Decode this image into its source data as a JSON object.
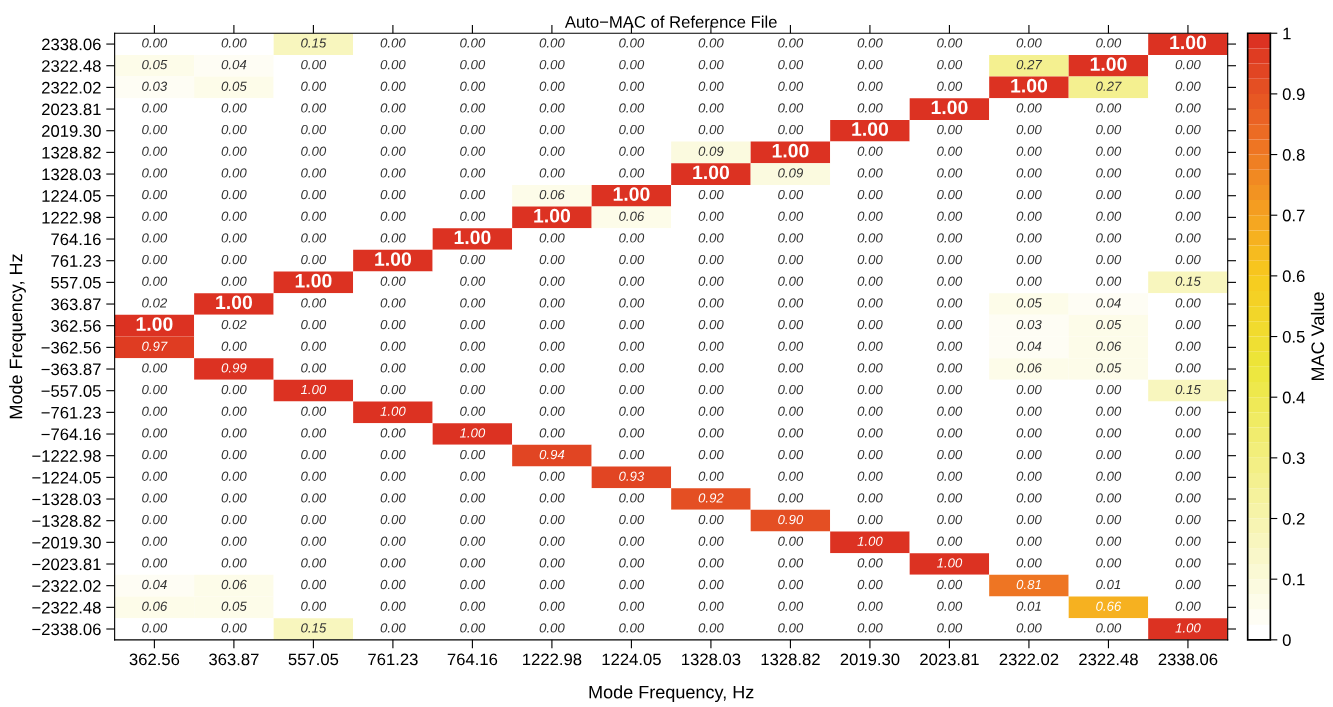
{
  "chart_data": {
    "type": "heatmap",
    "title": "Auto−MAC of Reference File",
    "xlabel": "Mode Frequency, Hz",
    "ylabel": "Mode Frequency, Hz",
    "clabel": "MAC Value",
    "categories": [
      "362.56",
      "363.87",
      "557.05",
      "761.23",
      "764.16",
      "1222.98",
      "1224.05",
      "1328.03",
      "1328.82",
      "2019.30",
      "2023.81",
      "2322.02",
      "2322.48",
      "2338.06"
    ],
    "y_categories": [
      "2338.06",
      "2322.48",
      "2322.02",
      "2023.81",
      "2019.30",
      "1328.82",
      "1328.03",
      "1224.05",
      "1222.98",
      "764.16",
      "761.23",
      "557.05",
      "363.87",
      "362.56",
      "−362.56",
      "−363.87",
      "−557.05",
      "−761.23",
      "−764.16",
      "−1222.98",
      "−1224.05",
      "−1328.03",
      "−1328.82",
      "−2019.30",
      "−2023.81",
      "−2322.02",
      "−2322.48",
      "−2338.06"
    ],
    "cells": [
      [
        0.0,
        0.0,
        0.15,
        0.0,
        0.0,
        0.0,
        0.0,
        0.0,
        0.0,
        0.0,
        0.0,
        0.0,
        0.0,
        1.0
      ],
      [
        0.05,
        0.04,
        0.0,
        0.0,
        0.0,
        0.0,
        0.0,
        0.0,
        0.0,
        0.0,
        0.0,
        0.27,
        1.0,
        0.0
      ],
      [
        0.03,
        0.05,
        0.0,
        0.0,
        0.0,
        0.0,
        0.0,
        0.0,
        0.0,
        0.0,
        0.0,
        1.0,
        0.27,
        0.0
      ],
      [
        0.0,
        0.0,
        0.0,
        0.0,
        0.0,
        0.0,
        0.0,
        0.0,
        0.0,
        0.0,
        1.0,
        0.0,
        0.0,
        0.0
      ],
      [
        0.0,
        0.0,
        0.0,
        0.0,
        0.0,
        0.0,
        0.0,
        0.0,
        0.0,
        1.0,
        0.0,
        0.0,
        0.0,
        0.0
      ],
      [
        0.0,
        0.0,
        0.0,
        0.0,
        0.0,
        0.0,
        0.0,
        0.09,
        1.0,
        0.0,
        0.0,
        0.0,
        0.0,
        0.0
      ],
      [
        0.0,
        0.0,
        0.0,
        0.0,
        0.0,
        0.0,
        0.0,
        1.0,
        0.09,
        0.0,
        0.0,
        0.0,
        0.0,
        0.0
      ],
      [
        0.0,
        0.0,
        0.0,
        0.0,
        0.0,
        0.06,
        1.0,
        0.0,
        0.0,
        0.0,
        0.0,
        0.0,
        0.0,
        0.0
      ],
      [
        0.0,
        0.0,
        0.0,
        0.0,
        0.0,
        1.0,
        0.06,
        0.0,
        0.0,
        0.0,
        0.0,
        0.0,
        0.0,
        0.0
      ],
      [
        0.0,
        0.0,
        0.0,
        0.0,
        1.0,
        0.0,
        0.0,
        0.0,
        0.0,
        0.0,
        0.0,
        0.0,
        0.0,
        0.0
      ],
      [
        0.0,
        0.0,
        0.0,
        1.0,
        0.0,
        0.0,
        0.0,
        0.0,
        0.0,
        0.0,
        0.0,
        0.0,
        0.0,
        0.0
      ],
      [
        0.0,
        0.0,
        1.0,
        0.0,
        0.0,
        0.0,
        0.0,
        0.0,
        0.0,
        0.0,
        0.0,
        0.0,
        0.0,
        0.15
      ],
      [
        0.02,
        1.0,
        0.0,
        0.0,
        0.0,
        0.0,
        0.0,
        0.0,
        0.0,
        0.0,
        0.0,
        0.05,
        0.04,
        0.0
      ],
      [
        1.0,
        0.02,
        0.0,
        0.0,
        0.0,
        0.0,
        0.0,
        0.0,
        0.0,
        0.0,
        0.0,
        0.03,
        0.05,
        0.0
      ],
      [
        0.97,
        0.0,
        0.0,
        0.0,
        0.0,
        0.0,
        0.0,
        0.0,
        0.0,
        0.0,
        0.0,
        0.04,
        0.06,
        0.0
      ],
      [
        0.0,
        0.99,
        0.0,
        0.0,
        0.0,
        0.0,
        0.0,
        0.0,
        0.0,
        0.0,
        0.0,
        0.06,
        0.05,
        0.0
      ],
      [
        0.0,
        0.0,
        1.0,
        0.0,
        0.0,
        0.0,
        0.0,
        0.0,
        0.0,
        0.0,
        0.0,
        0.0,
        0.0,
        0.15
      ],
      [
        0.0,
        0.0,
        0.0,
        1.0,
        0.0,
        0.0,
        0.0,
        0.0,
        0.0,
        0.0,
        0.0,
        0.0,
        0.0,
        0.0
      ],
      [
        0.0,
        0.0,
        0.0,
        0.0,
        1.0,
        0.0,
        0.0,
        0.0,
        0.0,
        0.0,
        0.0,
        0.0,
        0.0,
        0.0
      ],
      [
        0.0,
        0.0,
        0.0,
        0.0,
        0.0,
        0.94,
        0.0,
        0.0,
        0.0,
        0.0,
        0.0,
        0.0,
        0.0,
        0.0
      ],
      [
        0.0,
        0.0,
        0.0,
        0.0,
        0.0,
        0.0,
        0.93,
        0.0,
        0.0,
        0.0,
        0.0,
        0.0,
        0.0,
        0.0
      ],
      [
        0.0,
        0.0,
        0.0,
        0.0,
        0.0,
        0.0,
        0.0,
        0.92,
        0.0,
        0.0,
        0.0,
        0.0,
        0.0,
        0.0
      ],
      [
        0.0,
        0.0,
        0.0,
        0.0,
        0.0,
        0.0,
        0.0,
        0.0,
        0.9,
        0.0,
        0.0,
        0.0,
        0.0,
        0.0
      ],
      [
        0.0,
        0.0,
        0.0,
        0.0,
        0.0,
        0.0,
        0.0,
        0.0,
        0.0,
        1.0,
        0.0,
        0.0,
        0.0,
        0.0
      ],
      [
        0.0,
        0.0,
        0.0,
        0.0,
        0.0,
        0.0,
        0.0,
        0.0,
        0.0,
        0.0,
        1.0,
        0.0,
        0.0,
        0.0
      ],
      [
        0.04,
        0.06,
        0.0,
        0.0,
        0.0,
        0.0,
        0.0,
        0.0,
        0.0,
        0.0,
        0.0,
        0.81,
        0.01,
        0.0
      ],
      [
        0.06,
        0.05,
        0.0,
        0.0,
        0.0,
        0.0,
        0.0,
        0.0,
        0.0,
        0.0,
        0.0,
        0.01,
        0.66,
        0.0
      ],
      [
        0.0,
        0.0,
        0.15,
        0.0,
        0.0,
        0.0,
        0.0,
        0.0,
        0.0,
        0.0,
        0.0,
        0.0,
        0.0,
        1.0
      ]
    ],
    "cell_labels": [
      [
        "0.00",
        "0.00",
        "0.15",
        "0.00",
        "0.00",
        "0.00",
        "0.00",
        "0.00",
        "0.00",
        "0.00",
        "0.00",
        "0.00",
        "0.00",
        "1.00"
      ],
      [
        "0.05",
        "0.04",
        "0.00",
        "0.00",
        "0.00",
        "0.00",
        "0.00",
        "0.00",
        "0.00",
        "0.00",
        "0.00",
        "0.27",
        "1.00",
        "0.00"
      ],
      [
        "0.03",
        "0.05",
        "0.00",
        "0.00",
        "0.00",
        "0.00",
        "0.00",
        "0.00",
        "0.00",
        "0.00",
        "0.00",
        "1.00",
        "0.27",
        "0.00"
      ],
      [
        "0.00",
        "0.00",
        "0.00",
        "0.00",
        "0.00",
        "0.00",
        "0.00",
        "0.00",
        "0.00",
        "0.00",
        "1.00",
        "0.00",
        "0.00",
        "0.00"
      ],
      [
        "0.00",
        "0.00",
        "0.00",
        "0.00",
        "0.00",
        "0.00",
        "0.00",
        "0.00",
        "0.00",
        "1.00",
        "0.00",
        "0.00",
        "0.00",
        "0.00"
      ],
      [
        "0.00",
        "0.00",
        "0.00",
        "0.00",
        "0.00",
        "0.00",
        "0.00",
        "0.09",
        "1.00",
        "0.00",
        "0.00",
        "0.00",
        "0.00",
        "0.00"
      ],
      [
        "0.00",
        "0.00",
        "0.00",
        "0.00",
        "0.00",
        "0.00",
        "0.00",
        "1.00",
        "0.09",
        "0.00",
        "0.00",
        "0.00",
        "0.00",
        "0.00"
      ],
      [
        "0.00",
        "0.00",
        "0.00",
        "0.00",
        "0.00",
        "0.06",
        "1.00",
        "0.00",
        "0.00",
        "0.00",
        "0.00",
        "0.00",
        "0.00",
        "0.00"
      ],
      [
        "0.00",
        "0.00",
        "0.00",
        "0.00",
        "0.00",
        "1.00",
        "0.06",
        "0.00",
        "0.00",
        "0.00",
        "0.00",
        "0.00",
        "0.00",
        "0.00"
      ],
      [
        "0.00",
        "0.00",
        "0.00",
        "0.00",
        "1.00",
        "0.00",
        "0.00",
        "0.00",
        "0.00",
        "0.00",
        "0.00",
        "0.00",
        "0.00",
        "0.00"
      ],
      [
        "0.00",
        "0.00",
        "0.00",
        "1.00",
        "0.00",
        "0.00",
        "0.00",
        "0.00",
        "0.00",
        "0.00",
        "0.00",
        "0.00",
        "0.00",
        "0.00"
      ],
      [
        "0.00",
        "0.00",
        "1.00",
        "0.00",
        "0.00",
        "0.00",
        "0.00",
        "0.00",
        "0.00",
        "0.00",
        "0.00",
        "0.00",
        "0.00",
        "0.15"
      ],
      [
        "0.02",
        "1.00",
        "0.00",
        "0.00",
        "0.00",
        "0.00",
        "0.00",
        "0.00",
        "0.00",
        "0.00",
        "0.00",
        "0.05",
        "0.04",
        "0.00"
      ],
      [
        "1.00",
        "0.02",
        "0.00",
        "0.00",
        "0.00",
        "0.00",
        "0.00",
        "0.00",
        "0.00",
        "0.00",
        "0.00",
        "0.03",
        "0.05",
        "0.00"
      ],
      [
        "0.97",
        "0.00",
        "0.00",
        "0.00",
        "0.00",
        "0.00",
        "0.00",
        "0.00",
        "0.00",
        "0.00",
        "0.00",
        "0.04",
        "0.06",
        "0.00"
      ],
      [
        "0.00",
        "0.99",
        "0.00",
        "0.00",
        "0.00",
        "0.00",
        "0.00",
        "0.00",
        "0.00",
        "0.00",
        "0.00",
        "0.06",
        "0.05",
        "0.00"
      ],
      [
        "0.00",
        "0.00",
        "1.00",
        "0.00",
        "0.00",
        "0.00",
        "0.00",
        "0.00",
        "0.00",
        "0.00",
        "0.00",
        "0.00",
        "0.00",
        "0.15"
      ],
      [
        "0.00",
        "0.00",
        "0.00",
        "1.00",
        "0.00",
        "0.00",
        "0.00",
        "0.00",
        "0.00",
        "0.00",
        "0.00",
        "0.00",
        "0.00",
        "0.00"
      ],
      [
        "0.00",
        "0.00",
        "0.00",
        "0.00",
        "1.00",
        "0.00",
        "0.00",
        "0.00",
        "0.00",
        "0.00",
        "0.00",
        "0.00",
        "0.00",
        "0.00"
      ],
      [
        "0.00",
        "0.00",
        "0.00",
        "0.00",
        "0.00",
        "0.94",
        "0.00",
        "0.00",
        "0.00",
        "0.00",
        "0.00",
        "0.00",
        "0.00",
        "0.00"
      ],
      [
        "0.00",
        "0.00",
        "0.00",
        "0.00",
        "0.00",
        "0.00",
        "0.93",
        "0.00",
        "0.00",
        "0.00",
        "0.00",
        "0.00",
        "0.00",
        "0.00"
      ],
      [
        "0.00",
        "0.00",
        "0.00",
        "0.00",
        "0.00",
        "0.00",
        "0.00",
        "0.92",
        "0.00",
        "0.00",
        "0.00",
        "0.00",
        "0.00",
        "0.00"
      ],
      [
        "0.00",
        "0.00",
        "0.00",
        "0.00",
        "0.00",
        "0.00",
        "0.00",
        "0.00",
        "0.90",
        "0.00",
        "0.00",
        "0.00",
        "0.00",
        "0.00"
      ],
      [
        "0.00",
        "0.00",
        "0.00",
        "0.00",
        "0.00",
        "0.00",
        "0.00",
        "0.00",
        "0.00",
        "1.00",
        "0.00",
        "0.00",
        "0.00",
        "0.00"
      ],
      [
        "0.00",
        "0.00",
        "0.00",
        "0.00",
        "0.00",
        "0.00",
        "0.00",
        "0.00",
        "0.00",
        "0.00",
        "1.00",
        "0.00",
        "0.00",
        "0.00"
      ],
      [
        "0.04",
        "0.06",
        "0.00",
        "0.00",
        "0.00",
        "0.00",
        "0.00",
        "0.00",
        "0.00",
        "0.00",
        "0.00",
        "0.81",
        "0.01",
        "0.00"
      ],
      [
        "0.06",
        "0.05",
        "0.00",
        "0.00",
        "0.00",
        "0.00",
        "0.00",
        "0.00",
        "0.00",
        "0.00",
        "0.00",
        "0.01",
        "0.66",
        "0.00"
      ],
      [
        "0.00",
        "0.00",
        "0.15",
        "0.00",
        "0.00",
        "0.00",
        "0.00",
        "0.00",
        "0.00",
        "0.00",
        "0.00",
        "0.00",
        "0.00",
        "1.00"
      ]
    ],
    "clim": [
      0,
      1
    ],
    "cticks": [
      0,
      0.1,
      0.2,
      0.3,
      0.4,
      0.5,
      0.6,
      0.7,
      0.8,
      0.9,
      1
    ]
  }
}
